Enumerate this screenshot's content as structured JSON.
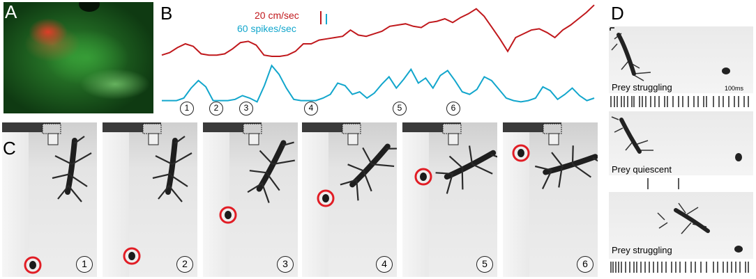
{
  "panels": {
    "a": "A",
    "b": "B",
    "c": "C",
    "d": "D"
  },
  "traces": {
    "speed_label": "20 cm/sec",
    "spikes_label": "60 spikes/sec",
    "speed_color": "#c0181c",
    "spikes_color": "#12a6cc",
    "speed_values": [
      88,
      84,
      76,
      70,
      74,
      86,
      88,
      88,
      86,
      78,
      68,
      66,
      72,
      88,
      90,
      90,
      88,
      82,
      70,
      70,
      64,
      62,
      60,
      58,
      48,
      56,
      58,
      54,
      50,
      42,
      40,
      38,
      42,
      44,
      36,
      34,
      30,
      36,
      28,
      22,
      14,
      26,
      44,
      62,
      82,
      60,
      54,
      48,
      46,
      52,
      60,
      48,
      40,
      30,
      20,
      8
    ],
    "spikes_values": [
      94,
      94,
      94,
      90,
      74,
      62,
      72,
      94,
      94,
      94,
      92,
      86,
      90,
      96,
      70,
      38,
      52,
      74,
      92,
      94,
      94,
      94,
      90,
      84,
      66,
      70,
      84,
      80,
      90,
      82,
      68,
      56,
      74,
      60,
      44,
      66,
      58,
      74,
      54,
      46,
      62,
      80,
      84,
      76,
      56,
      62,
      76,
      90,
      94,
      96,
      94,
      90,
      72,
      78,
      92,
      84,
      74,
      86,
      94,
      90
    ]
  },
  "events": [
    "1",
    "2",
    "3",
    "4",
    "5",
    "6"
  ],
  "frames": [
    {
      "number": "1"
    },
    {
      "number": "2"
    },
    {
      "number": "3"
    },
    {
      "number": "4"
    },
    {
      "number": "5"
    },
    {
      "number": "6"
    }
  ],
  "d_panel": {
    "labels": [
      "Prey struggling",
      "Prey quiescent",
      "Prey struggling"
    ],
    "scale_bar": "100ms"
  }
}
